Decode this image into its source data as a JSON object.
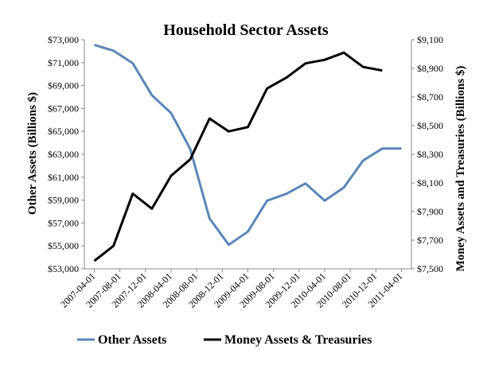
{
  "chart_data": {
    "type": "line",
    "title": "Household Sector Assets",
    "categories": [
      "2007-04-01",
      "2007-07-01",
      "2007-10-01",
      "2008-01-01",
      "2008-04-01",
      "2008-07-01",
      "2008-10-01",
      "2009-01-01",
      "2009-04-01",
      "2009-07-01",
      "2009-10-01",
      "2010-01-01",
      "2010-04-01",
      "2010-07-01",
      "2010-10-01",
      "2011-01-01",
      "2011-04-01"
    ],
    "x_tick_labels": [
      "2007-04-01",
      "2007-08-01",
      "2007-12-01",
      "2008-04-01",
      "2008-08-01",
      "2008-12-01",
      "2009-04-01",
      "2009-08-01",
      "2009-12-01",
      "2010-04-01",
      "2010-08-01",
      "2010-12-01",
      "2011-04-01"
    ],
    "left_axis": {
      "label": "Other Assets (Billions $)",
      "range": [
        53000,
        73000
      ],
      "ticks": [
        "$53,000",
        "$55,000",
        "$57,000",
        "$59,000",
        "$61,000",
        "$63,000",
        "$65,000",
        "$67,000",
        "$69,000",
        "$71,000",
        "$73,000"
      ]
    },
    "right_axis": {
      "label": "Money Assets and Treasuries (Billions $)",
      "range": [
        7500,
        9100
      ],
      "ticks": [
        "$7,500",
        "$7,700",
        "$7,900",
        "$8,100",
        "$8,300",
        "$8,500",
        "$8,700",
        "$8,900",
        "$9,100"
      ]
    },
    "series": [
      {
        "name": "Other Assets",
        "axis": "left",
        "color": "#5b86b8",
        "values": [
          72550,
          72050,
          70950,
          68150,
          66600,
          63450,
          57400,
          55100,
          56250,
          58950,
          59550,
          60450,
          58950,
          60100,
          62450,
          63500,
          63500
        ]
      },
      {
        "name": "Money Assets & Treasuries",
        "axis": "right",
        "color": "#000000",
        "values": [
          7555,
          7660,
          8025,
          7920,
          8150,
          8265,
          8550,
          8460,
          8490,
          8760,
          8835,
          8935,
          8960,
          9010,
          8910,
          8885,
          null
        ]
      }
    ],
    "grid": false,
    "legend_position": "bottom"
  }
}
